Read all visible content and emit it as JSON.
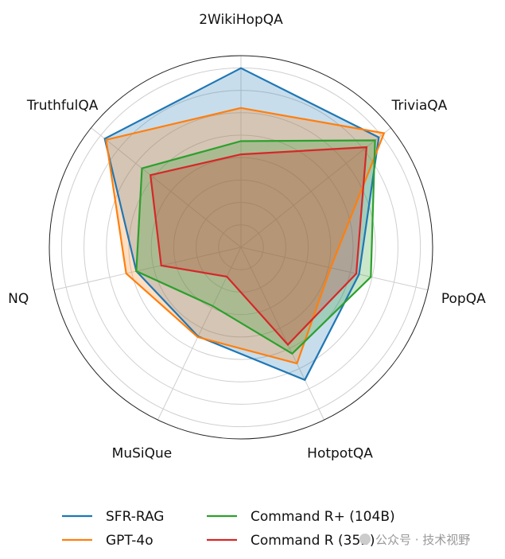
{
  "chart_data": {
    "type": "radar",
    "axes": [
      "2WikiHopQA",
      "TriviaQA",
      "PopQA",
      "HotpotQA",
      "MuSiQue",
      "NQ",
      "TruthfulQA"
    ],
    "rlim": [
      0,
      1
    ],
    "grid": true,
    "grid_rings": 8,
    "legend_placement": "bottom",
    "series": [
      {
        "name": "SFR-RAG",
        "color": "#1f77b4",
        "values": [
          0.935,
          0.92,
          0.632,
          0.768,
          0.516,
          0.56,
          0.909
        ]
      },
      {
        "name": "GPT-4o",
        "color": "#ff7f0e",
        "values": [
          0.727,
          0.955,
          0.48,
          0.673,
          0.52,
          0.614,
          0.9
        ]
      },
      {
        "name": "Command R+ (104B)",
        "color": "#2ca02c",
        "values": [
          0.554,
          0.895,
          0.695,
          0.616,
          0.34,
          0.56,
          0.661
        ]
      },
      {
        "name": "Command R (35B)",
        "color": "#d62728",
        "values": [
          0.485,
          0.838,
          0.617,
          0.564,
          0.17,
          0.427,
          0.604
        ]
      }
    ]
  },
  "watermark": "公众号 · 技术视野"
}
